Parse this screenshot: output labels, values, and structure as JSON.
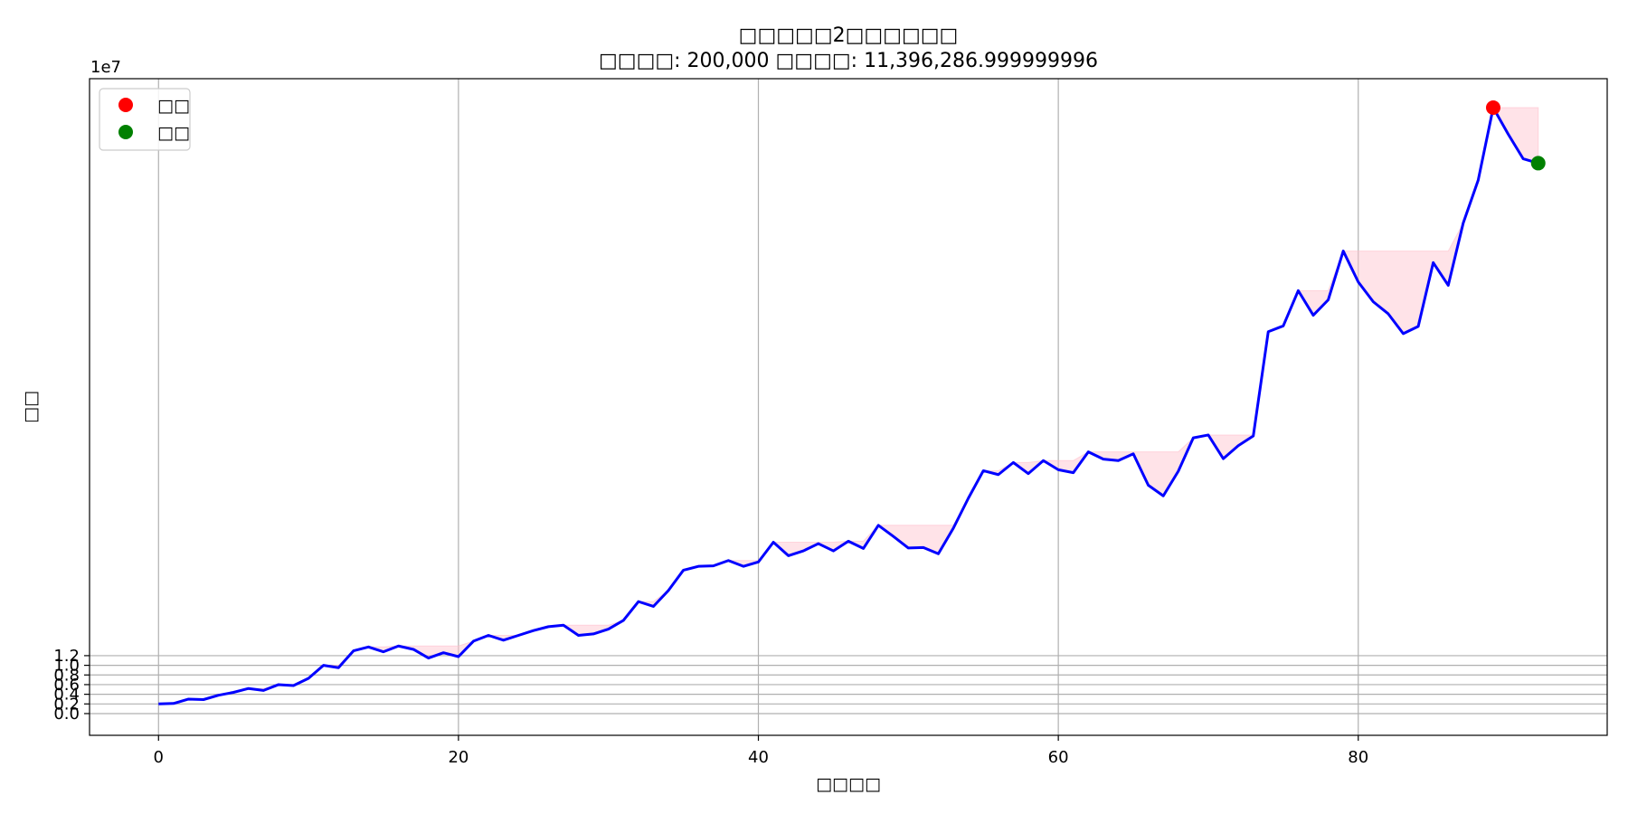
{
  "chart_data": {
    "type": "line",
    "title": "□□□□□2□□□□□□",
    "subtitle": "□□□□: 200,000 □□□□: 11,396,286.999999996",
    "xlabel": "□□□□",
    "ylabel": "□□",
    "y_offset_label": "1e7",
    "xlim": [
      -4.6,
      96.6
    ],
    "ylim": [
      -0.45,
      13.15
    ],
    "x_ticks": [
      0,
      20,
      40,
      60,
      80
    ],
    "y_ticks": [
      0.0,
      0.2,
      0.4,
      0.6,
      0.8,
      1.0,
      1.2
    ],
    "y_tick_labels": [
      "0.0",
      "0.2",
      "0.4",
      "0.6",
      "0.8",
      "1.0",
      "1.2"
    ],
    "grid": true,
    "legend_placement": "upper-left",
    "line_color": "#0000ff",
    "drawdown_fill_color": "#ffc0cb",
    "series": [
      {
        "values": [
          0.2,
          0.21,
          0.3,
          0.29,
          0.38,
          0.44,
          0.52,
          0.48,
          0.6,
          0.58,
          0.73,
          1.0,
          0.95,
          1.3,
          1.38,
          1.28,
          1.4,
          1.33,
          1.15,
          1.26,
          1.18,
          1.5,
          1.62,
          1.52,
          1.62,
          1.72,
          1.8,
          1.83,
          1.62,
          1.65,
          1.75,
          1.93,
          2.32,
          2.22,
          2.55,
          2.97,
          3.05,
          3.06,
          3.17,
          3.05,
          3.14,
          3.55,
          3.27,
          3.37,
          3.52,
          3.37,
          3.57,
          3.42,
          3.9,
          3.67,
          3.43,
          3.44,
          3.31,
          3.84,
          4.46,
          5.03,
          4.95,
          5.2,
          4.97,
          5.24,
          5.05,
          4.99,
          5.42,
          5.27,
          5.24,
          5.38,
          4.73,
          4.51,
          5.02,
          5.71,
          5.77,
          5.28,
          5.55,
          5.75,
          7.91,
          8.03,
          8.76,
          8.25,
          8.57,
          9.58,
          8.94,
          8.53,
          8.28,
          7.87,
          8.02,
          9.34,
          8.87,
          10.16,
          11.05,
          12.55,
          12.0,
          11.49,
          11.4
        ]
      }
    ],
    "markers": [
      {
        "name": "□□",
        "x": 89,
        "y": 12.55,
        "color": "#ff0000"
      },
      {
        "name": "□□",
        "x": 92,
        "y": 11.4,
        "color": "#008000"
      }
    ]
  }
}
